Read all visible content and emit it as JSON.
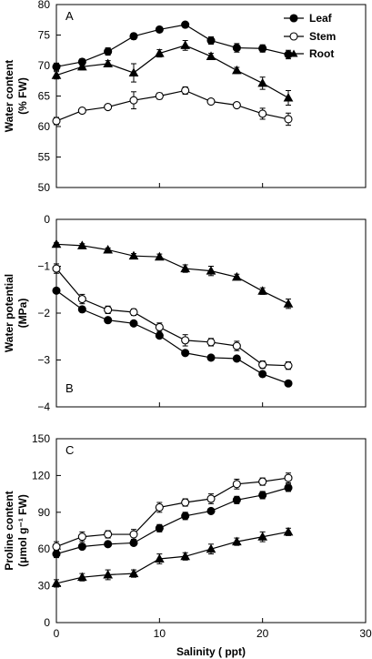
{
  "chart_data": [
    {
      "type": "line",
      "panel_label": "A",
      "ylabel": [
        "Water content",
        "(% FW)"
      ],
      "ylim": [
        50,
        80
      ],
      "yticks": [
        50,
        55,
        60,
        65,
        70,
        75,
        80
      ],
      "x": [
        0,
        2.5,
        5,
        7.5,
        10,
        12.5,
        15,
        17.5,
        20,
        22.5
      ],
      "series": [
        {
          "name": "Leaf",
          "marker": "filled-circle",
          "values": [
            69.8,
            70.6,
            72.3,
            74.8,
            75.9,
            76.7,
            74.1,
            72.9,
            72.8,
            71.8
          ],
          "errors": [
            0.6,
            0.5,
            0.6,
            0.5,
            0.4,
            0.4,
            0.6,
            0.7,
            0.6,
            0.7
          ]
        },
        {
          "name": "Stem",
          "marker": "open-circle",
          "values": [
            60.9,
            62.6,
            63.2,
            64.3,
            65.0,
            65.9,
            64.1,
            63.5,
            62.1,
            61.2
          ],
          "errors": [
            0.6,
            0.4,
            0.4,
            1.4,
            0.5,
            0.6,
            0.3,
            0.4,
            0.9,
            1.0
          ]
        },
        {
          "name": "Root",
          "marker": "filled-triangle",
          "values": [
            68.4,
            69.8,
            70.3,
            68.8,
            72.0,
            73.3,
            71.5,
            69.2,
            67.1,
            64.7
          ],
          "errors": [
            0.6,
            0.5,
            0.5,
            1.5,
            0.6,
            0.8,
            0.5,
            0.5,
            1.0,
            1.2
          ]
        }
      ]
    },
    {
      "type": "line",
      "panel_label": "B",
      "ylabel": [
        "Water potential",
        "(MPa)"
      ],
      "ylim": [
        -4,
        0
      ],
      "yticks": [
        -4,
        -3,
        -2,
        -1,
        0
      ],
      "x": [
        0,
        2.5,
        5,
        7.5,
        10,
        12.5,
        15,
        17.5,
        20,
        22.5
      ],
      "series": [
        {
          "name": "Leaf",
          "marker": "filled-circle",
          "values": [
            -1.52,
            -1.92,
            -2.15,
            -2.22,
            -2.48,
            -2.85,
            -2.95,
            -2.97,
            -3.3,
            -3.5
          ],
          "errors": [
            0.03,
            0.04,
            0.04,
            0.04,
            0.04,
            0.04,
            0.04,
            0.04,
            0.05,
            0.05
          ]
        },
        {
          "name": "Stem",
          "marker": "open-circle",
          "values": [
            -1.05,
            -1.7,
            -1.93,
            -1.98,
            -2.3,
            -2.58,
            -2.62,
            -2.7,
            -3.1,
            -3.12
          ],
          "errors": [
            0.1,
            0.1,
            0.08,
            0.07,
            0.09,
            0.12,
            0.08,
            0.1,
            0.08,
            0.08
          ]
        },
        {
          "name": "Root",
          "marker": "filled-triangle",
          "values": [
            -0.53,
            -0.56,
            -0.65,
            -0.78,
            -0.8,
            -1.05,
            -1.1,
            -1.23,
            -1.53,
            -1.8
          ],
          "errors": [
            0.03,
            0.04,
            0.04,
            0.05,
            0.06,
            0.08,
            0.1,
            0.06,
            0.07,
            0.1
          ]
        }
      ]
    },
    {
      "type": "line",
      "panel_label": "C",
      "ylabel": [
        "Proline content",
        "(μmol g⁻¹ FW)"
      ],
      "ylim": [
        0,
        150
      ],
      "yticks": [
        0,
        30,
        60,
        90,
        120,
        150
      ],
      "xlabel": "Salinity ( ppt)",
      "xlim": [
        0,
        30
      ],
      "xticks": [
        0,
        10,
        20,
        30
      ],
      "x": [
        0,
        2.5,
        5,
        7.5,
        10,
        12.5,
        15,
        17.5,
        20,
        22.5
      ],
      "series": [
        {
          "name": "Leaf",
          "marker": "filled-circle",
          "values": [
            56,
            62,
            64,
            65,
            77,
            87,
            91,
            100,
            104,
            110
          ],
          "errors": [
            3,
            2,
            2,
            2,
            3,
            3,
            2,
            3,
            3,
            3
          ]
        },
        {
          "name": "Stem",
          "marker": "open-circle",
          "values": [
            62,
            70,
            72,
            72,
            94,
            98,
            101,
            113,
            115,
            118
          ],
          "errors": [
            4,
            4,
            3,
            4,
            4,
            3,
            4,
            4,
            3,
            4
          ]
        },
        {
          "name": "Root",
          "marker": "filled-triangle",
          "values": [
            32,
            37,
            39,
            40,
            52,
            54,
            60,
            66,
            70,
            74
          ],
          "errors": [
            3,
            3,
            4,
            3,
            4,
            3,
            4,
            3,
            4,
            3
          ]
        }
      ]
    }
  ],
  "legend": {
    "location": "top-right of panel A",
    "entries": [
      "Leaf",
      "Stem",
      "Root"
    ]
  }
}
